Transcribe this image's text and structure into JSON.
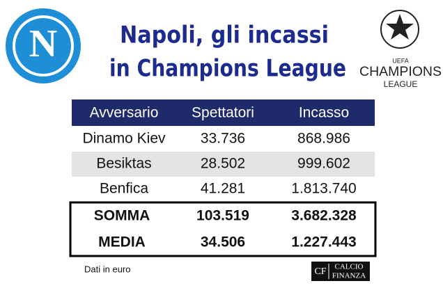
{
  "header": {
    "title": [
      "Napoli, gli incassi",
      "in Champions League"
    ],
    "left_logo": "N",
    "right_logo": [
      "UEFA",
      "CHAMPIONS",
      "LEAGUE"
    ]
  },
  "table": {
    "columns": [
      "Avversario",
      "Spettatori",
      "Incasso"
    ],
    "rows": [
      [
        "Dinamo Kiev",
        "33.736",
        "868.986"
      ],
      [
        "Besiktas",
        "28.502",
        "999.602"
      ],
      [
        "Benfica",
        "41.281",
        "1.813.740"
      ]
    ],
    "totals": [
      [
        "SOMMA",
        "103.519",
        "3.682.328"
      ],
      [
        "MEDIA",
        "34.506",
        "1.227.443"
      ]
    ]
  },
  "footer": {
    "note": "Dati in euro",
    "credit": [
      "CF",
      "CALCIO",
      "FINANZA"
    ]
  }
}
